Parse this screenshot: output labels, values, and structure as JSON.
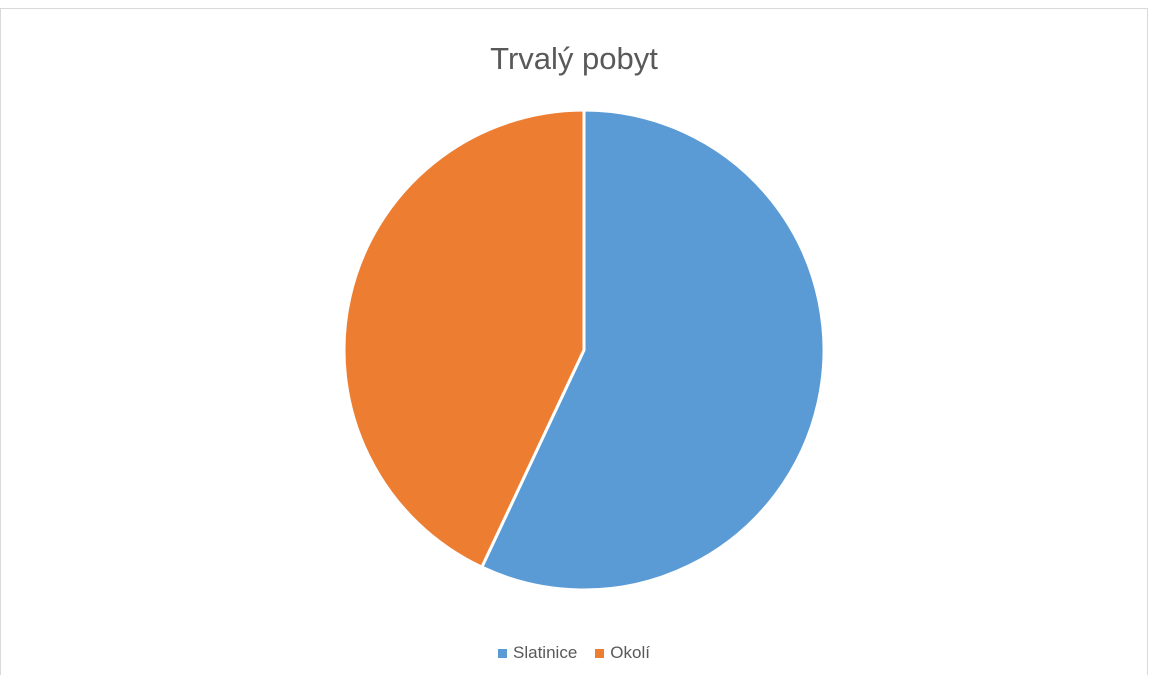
{
  "chart_data": {
    "type": "pie",
    "title": "Trvalý pobyt",
    "categories": [
      "Slatinice",
      "Okolí"
    ],
    "values": [
      57,
      43
    ],
    "colors": [
      "#5b9bd5",
      "#ed7d31"
    ],
    "legend_position": "bottom"
  }
}
